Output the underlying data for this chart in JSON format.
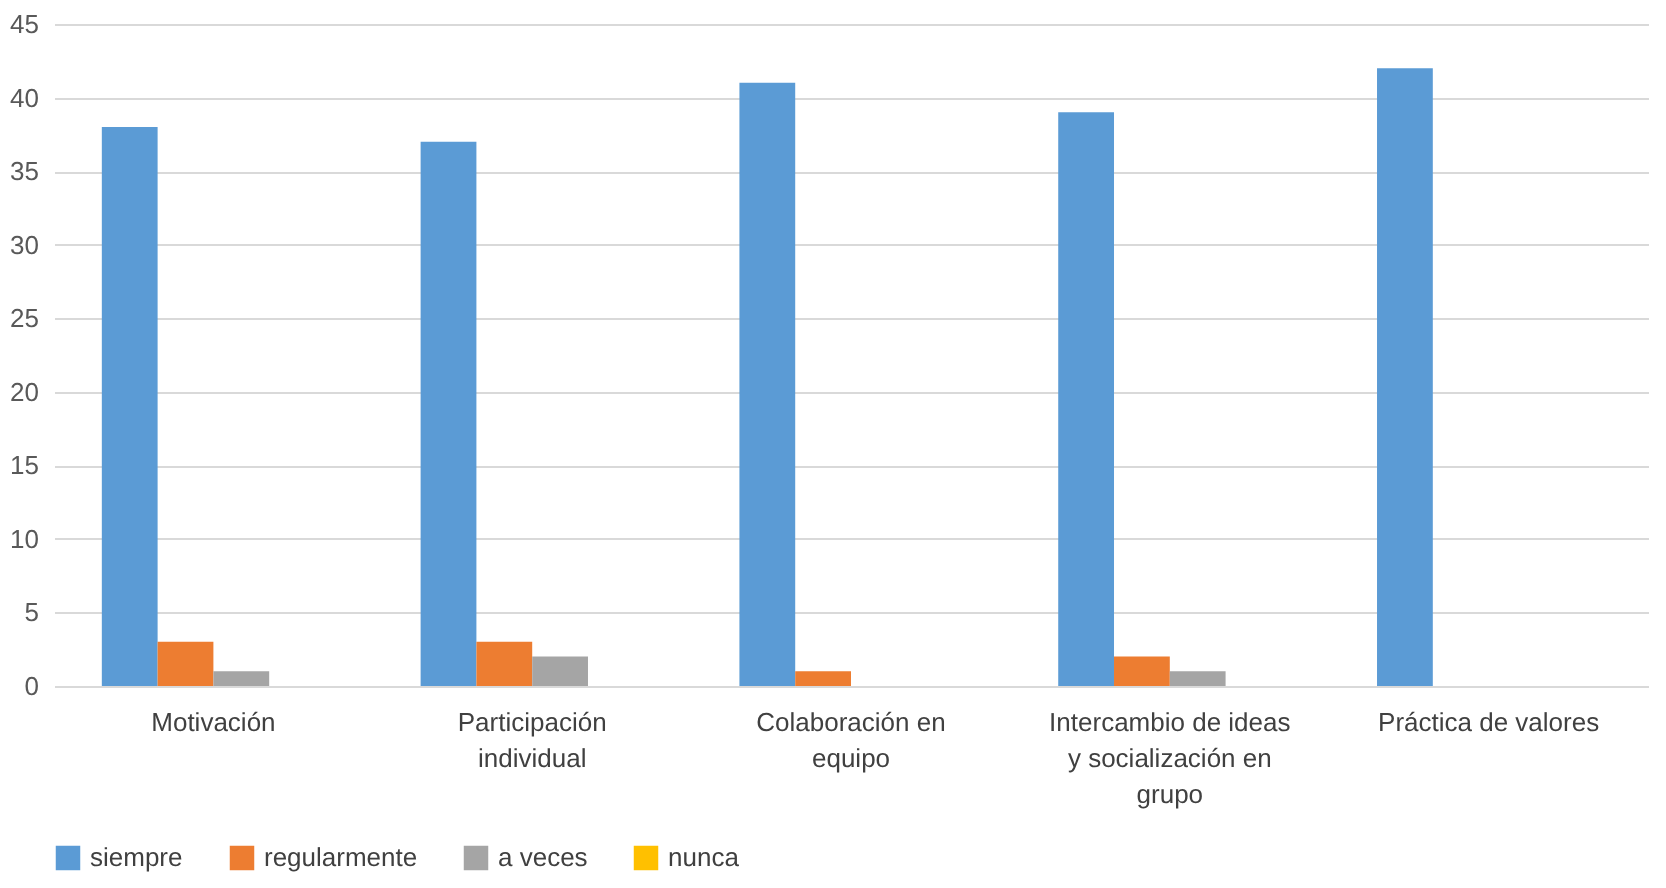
{
  "chart_data": {
    "type": "bar",
    "categories": [
      "Motivación",
      "Participación individual",
      "Colaboración  en equipo",
      "Intercambio de ideas y socialización en grupo",
      "Práctica de valores"
    ],
    "series": [
      {
        "name": "siempre",
        "color": "#5b9bd5",
        "values": [
          38,
          37,
          41,
          39,
          42
        ]
      },
      {
        "name": "regularmente",
        "color": "#ed7d31",
        "values": [
          3,
          3,
          1,
          2,
          0
        ]
      },
      {
        "name": "a veces",
        "color": "#a5a5a5",
        "values": [
          1,
          2,
          0,
          1,
          0
        ]
      },
      {
        "name": "nunca",
        "color": "#ffc000",
        "values": [
          0,
          0,
          0,
          0,
          0
        ]
      }
    ],
    "ylim": [
      0,
      45
    ],
    "yticks": [
      0,
      5,
      10,
      15,
      20,
      25,
      30,
      35,
      40,
      45
    ],
    "grid": "y",
    "legend": "bottom"
  }
}
